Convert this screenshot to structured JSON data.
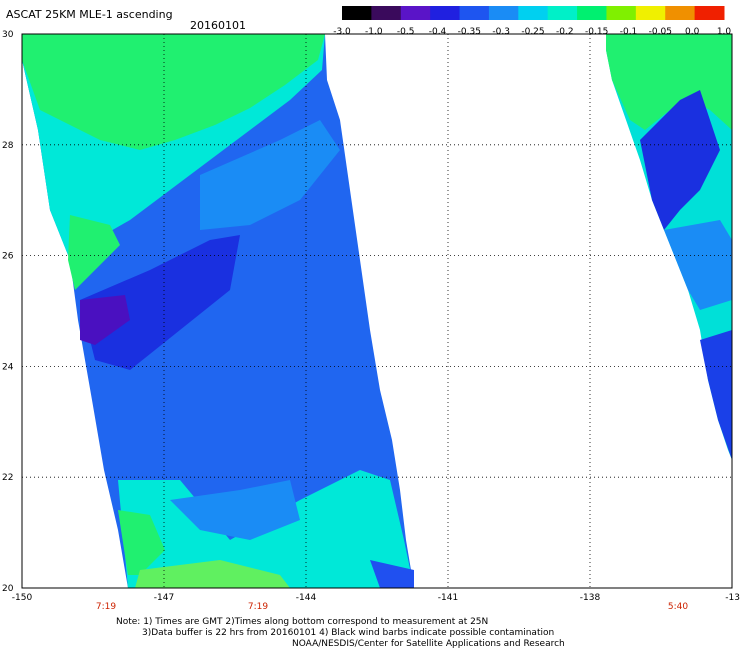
{
  "header": {
    "title": "ASCAT 25KM MLE-1 ascending",
    "date": "20160101"
  },
  "colorbar": {
    "labels": [
      "-3.0",
      "-1.0",
      "-0.5",
      "-0.4",
      "-0.35",
      "-0.3",
      "-0.25",
      "-0.2",
      "-0.15",
      "-0.1",
      "-0.05",
      "0.0",
      "1.0"
    ],
    "colors": [
      "#000000",
      "#3a0a5c",
      "#5a14c8",
      "#2020e0",
      "#1e55f0",
      "#1a8cf5",
      "#00d0f0",
      "#00f0c8",
      "#00f070",
      "#80f000",
      "#f0f000",
      "#f09000",
      "#f02000"
    ]
  },
  "axes": {
    "y_ticks": [
      "30",
      "28",
      "26",
      "24",
      "22",
      "20"
    ],
    "x_ticks": [
      "-150",
      "-147",
      "-144",
      "-141",
      "-138",
      "-13"
    ],
    "times": [
      "7:19",
      "7:19",
      "5:40"
    ],
    "time_color": "#cc2200"
  },
  "notes": {
    "line1": "Note: 1) Times are GMT 2)Times along bottom correspond to measurement at 25N",
    "line2": "3)Data buffer is 22 hrs from 20160101 4) Black wind barbs indicate possible contamination",
    "line3": "NOAA/NESDIS/Center for Satellite Applications and Research"
  },
  "swaths": {
    "colors": {
      "green": "#20f070",
      "cyan": "#00e8d8",
      "lightblue": "#1aa0f0",
      "blue": "#2060f0",
      "deepblue": "#1a2ae0",
      "purple": "#4a10c0"
    }
  }
}
